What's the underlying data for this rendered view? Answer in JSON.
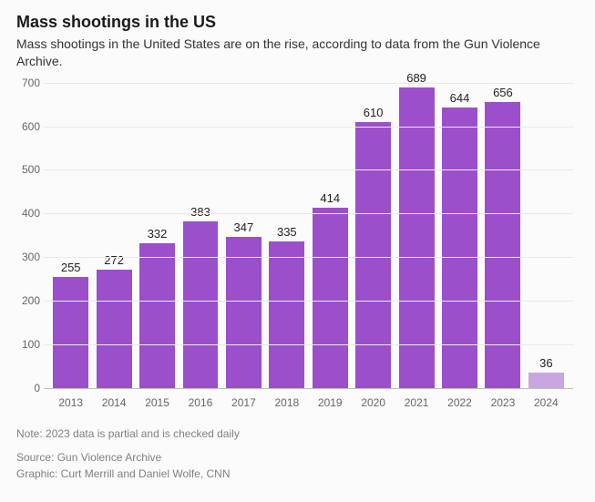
{
  "header": {
    "title": "Mass shootings in the US",
    "subtitle": "Mass shootings in the United States are on the rise, according to data from the Gun Violence Archive."
  },
  "chart": {
    "type": "bar",
    "categories": [
      "2013",
      "2014",
      "2015",
      "2016",
      "2017",
      "2018",
      "2019",
      "2020",
      "2021",
      "2022",
      "2023",
      "2024"
    ],
    "values": [
      255,
      272,
      332,
      383,
      347,
      335,
      414,
      610,
      689,
      644,
      656,
      36
    ],
    "bar_colors": [
      "#9b4fca",
      "#9b4fca",
      "#9b4fca",
      "#9b4fca",
      "#9b4fca",
      "#9b4fca",
      "#9b4fca",
      "#9b4fca",
      "#9b4fca",
      "#9b4fca",
      "#9b4fca",
      "#c9a6e0"
    ],
    "ylim": [
      0,
      700
    ],
    "ytick_step": 100,
    "yticks": [
      0,
      100,
      200,
      300,
      400,
      500,
      600,
      700
    ],
    "background_color": "#fbfbfb",
    "grid_color": "#e9e9e9",
    "axis_color": "#bdbdbd",
    "label_fontsize": 12,
    "value_label_fontsize": 13,
    "bar_width": 0.82
  },
  "footer": {
    "note": "Note: 2023 data is partial and is checked daily",
    "source": "Source: Gun Violence Archive",
    "graphic": "Graphic: Curt Merrill and Daniel Wolfe, CNN"
  }
}
